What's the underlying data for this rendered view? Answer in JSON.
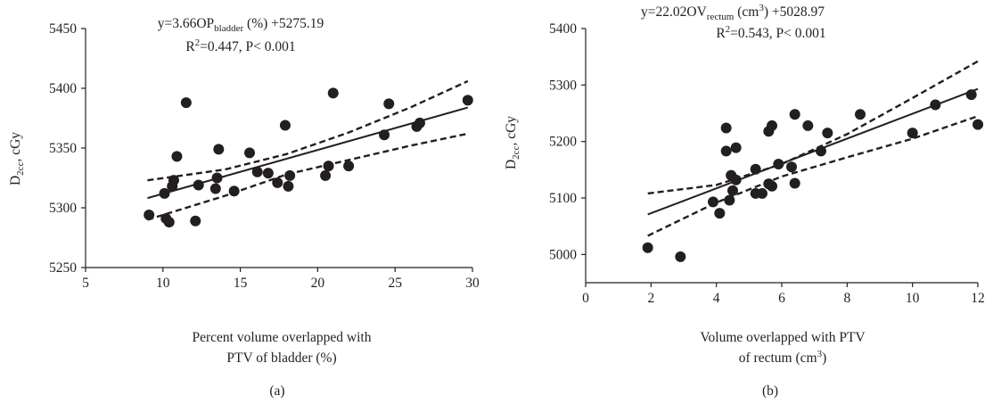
{
  "chart_data": [
    {
      "type": "scatter",
      "panel_label": "(a)",
      "title_line1": {
        "pre": "y=3.66OP",
        "sub": "bladder",
        "post": " (%) +5275.19"
      },
      "title_line2": {
        "r": "R",
        "sup": "2",
        "post": "=0.447, P< 0.001"
      },
      "ylabel": {
        "main": "D",
        "sub": "2cc",
        "post": ", cGy"
      },
      "xlabel_line1": "Percent volume overlapped with",
      "xlabel_line2": "PTV of bladder (%)",
      "xlim": [
        5,
        30
      ],
      "ylim": [
        5250,
        5450
      ],
      "xticks": [
        5,
        10,
        15,
        20,
        25,
        30
      ],
      "yticks": [
        5250,
        5300,
        5350,
        5400,
        5450
      ],
      "grid": false,
      "points": [
        [
          9.1,
          5294
        ],
        [
          10.1,
          5312
        ],
        [
          10.2,
          5291
        ],
        [
          10.4,
          5288
        ],
        [
          10.6,
          5318
        ],
        [
          10.7,
          5323
        ],
        [
          10.9,
          5343
        ],
        [
          11.5,
          5388
        ],
        [
          12.1,
          5289
        ],
        [
          12.3,
          5319
        ],
        [
          13.4,
          5316
        ],
        [
          13.5,
          5325
        ],
        [
          13.6,
          5349
        ],
        [
          14.6,
          5314
        ],
        [
          15.6,
          5346
        ],
        [
          16.1,
          5330
        ],
        [
          16.8,
          5329
        ],
        [
          17.4,
          5321
        ],
        [
          17.9,
          5369
        ],
        [
          18.1,
          5318
        ],
        [
          18.2,
          5327
        ],
        [
          20.5,
          5327
        ],
        [
          20.7,
          5335
        ],
        [
          21.0,
          5396
        ],
        [
          22.0,
          5335
        ],
        [
          24.3,
          5361
        ],
        [
          24.6,
          5387
        ],
        [
          26.4,
          5368
        ],
        [
          26.6,
          5371
        ],
        [
          29.7,
          5390
        ]
      ],
      "fit": {
        "slope": 3.66,
        "intercept": 5275.19,
        "x_range": [
          9,
          29.7
        ]
      },
      "ci_upper": [
        [
          9,
          5323
        ],
        [
          14,
          5332
        ],
        [
          18,
          5345
        ],
        [
          22,
          5363
        ],
        [
          26,
          5384
        ],
        [
          29.7,
          5406
        ]
      ],
      "ci_lower": [
        [
          9,
          5290
        ],
        [
          14,
          5310
        ],
        [
          18,
          5328
        ],
        [
          22,
          5340
        ],
        [
          26,
          5352
        ],
        [
          29.7,
          5362
        ]
      ]
    },
    {
      "type": "scatter",
      "panel_label": "(b)",
      "title_line1": {
        "pre": "y=22.02OV",
        "sub": "rectum",
        "mid": " (cm",
        "sup": "3",
        "post": ") +5028.97"
      },
      "title_line2": {
        "r": "R",
        "sup": "2",
        "post": "=0.543, P< 0.001"
      },
      "ylabel": {
        "main": "D",
        "sub": "2cc",
        "post": ", cGy"
      },
      "xlabel_line1": "Volume overlapped with PTV",
      "xlabel_line2": {
        "pre": "of rectum (cm",
        "sup": "3",
        "post": ")"
      },
      "xlim": [
        0,
        12
      ],
      "ylim": [
        4950,
        5400
      ],
      "xticks": [
        0,
        2,
        4,
        6,
        8,
        10,
        12
      ],
      "yticks": [
        5000,
        5100,
        5200,
        5300,
        5400
      ],
      "grid": false,
      "points": [
        [
          1.9,
          5012
        ],
        [
          2.9,
          4996
        ],
        [
          3.9,
          5093
        ],
        [
          4.1,
          5073
        ],
        [
          4.3,
          5183
        ],
        [
          4.3,
          5224
        ],
        [
          4.4,
          5096
        ],
        [
          4.45,
          5140
        ],
        [
          4.5,
          5113
        ],
        [
          4.6,
          5189
        ],
        [
          4.6,
          5132
        ],
        [
          5.2,
          5108
        ],
        [
          5.2,
          5151
        ],
        [
          5.4,
          5108
        ],
        [
          5.6,
          5218
        ],
        [
          5.6,
          5125
        ],
        [
          5.7,
          5228
        ],
        [
          5.7,
          5121
        ],
        [
          5.9,
          5160
        ],
        [
          6.3,
          5155
        ],
        [
          6.4,
          5248
        ],
        [
          6.4,
          5126
        ],
        [
          6.8,
          5228
        ],
        [
          7.2,
          5183
        ],
        [
          7.4,
          5215
        ],
        [
          8.4,
          5248
        ],
        [
          10.0,
          5215
        ],
        [
          10.7,
          5265
        ],
        [
          11.8,
          5283
        ],
        [
          12.0,
          5230
        ]
      ],
      "fit": {
        "slope": 22.02,
        "intercept": 5028.97,
        "x_range": [
          1.9,
          12
        ]
      },
      "ci_upper": [
        [
          1.9,
          5108
        ],
        [
          4,
          5123
        ],
        [
          6,
          5160
        ],
        [
          8,
          5213
        ],
        [
          10,
          5277
        ],
        [
          12,
          5342
        ]
      ],
      "ci_lower": [
        [
          1.9,
          5033
        ],
        [
          4,
          5092
        ],
        [
          6,
          5138
        ],
        [
          8,
          5172
        ],
        [
          10,
          5205
        ],
        [
          12,
          5245
        ]
      ]
    }
  ]
}
